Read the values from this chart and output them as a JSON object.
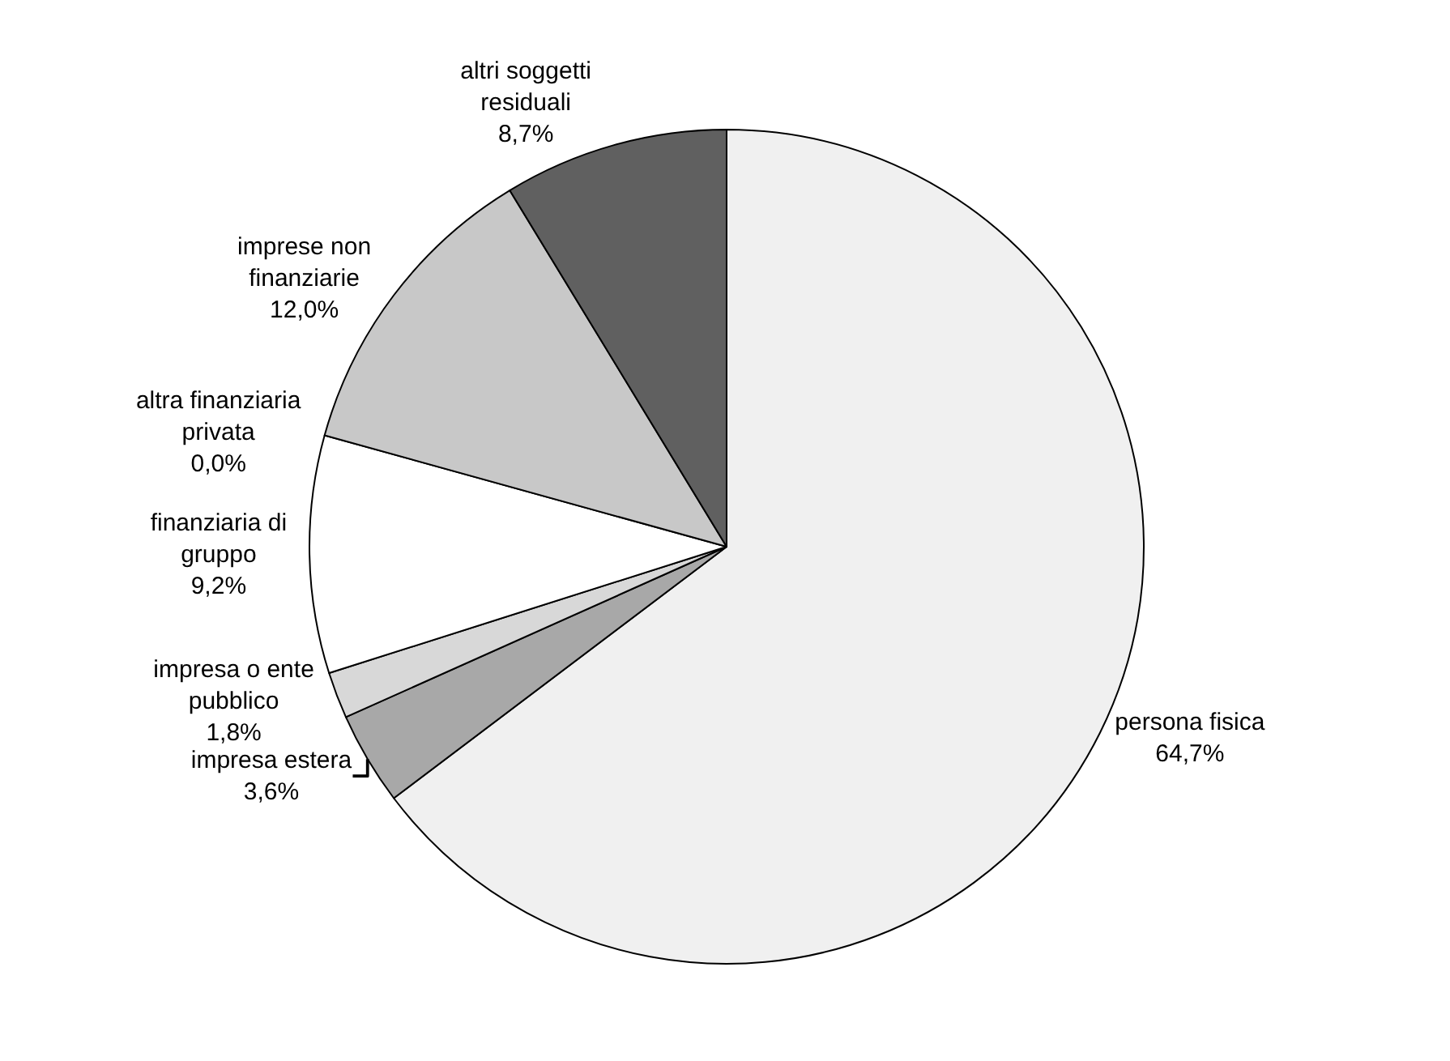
{
  "chart_data": {
    "type": "pie",
    "categories": [
      "persona fisica",
      "impresa estera",
      "impresa o ente pubblico",
      "finanziaria di gruppo",
      "altra finanziaria privata",
      "imprese non finanziarie",
      "altri soggetti residuali"
    ],
    "values": [
      64.7,
      3.6,
      1.8,
      9.2,
      0.0,
      12.0,
      8.7
    ],
    "value_labels": [
      "64,7%",
      "3,6%",
      "1,8%",
      "9,2%",
      "0,0%",
      "12,0%",
      "8,7%"
    ],
    "colors": [
      "#f0f0f0",
      "#a8a8a8",
      "#d8d8d8",
      "#ffffff",
      "#e0e0e0",
      "#c8c8c8",
      "#606060"
    ],
    "legend": false
  }
}
